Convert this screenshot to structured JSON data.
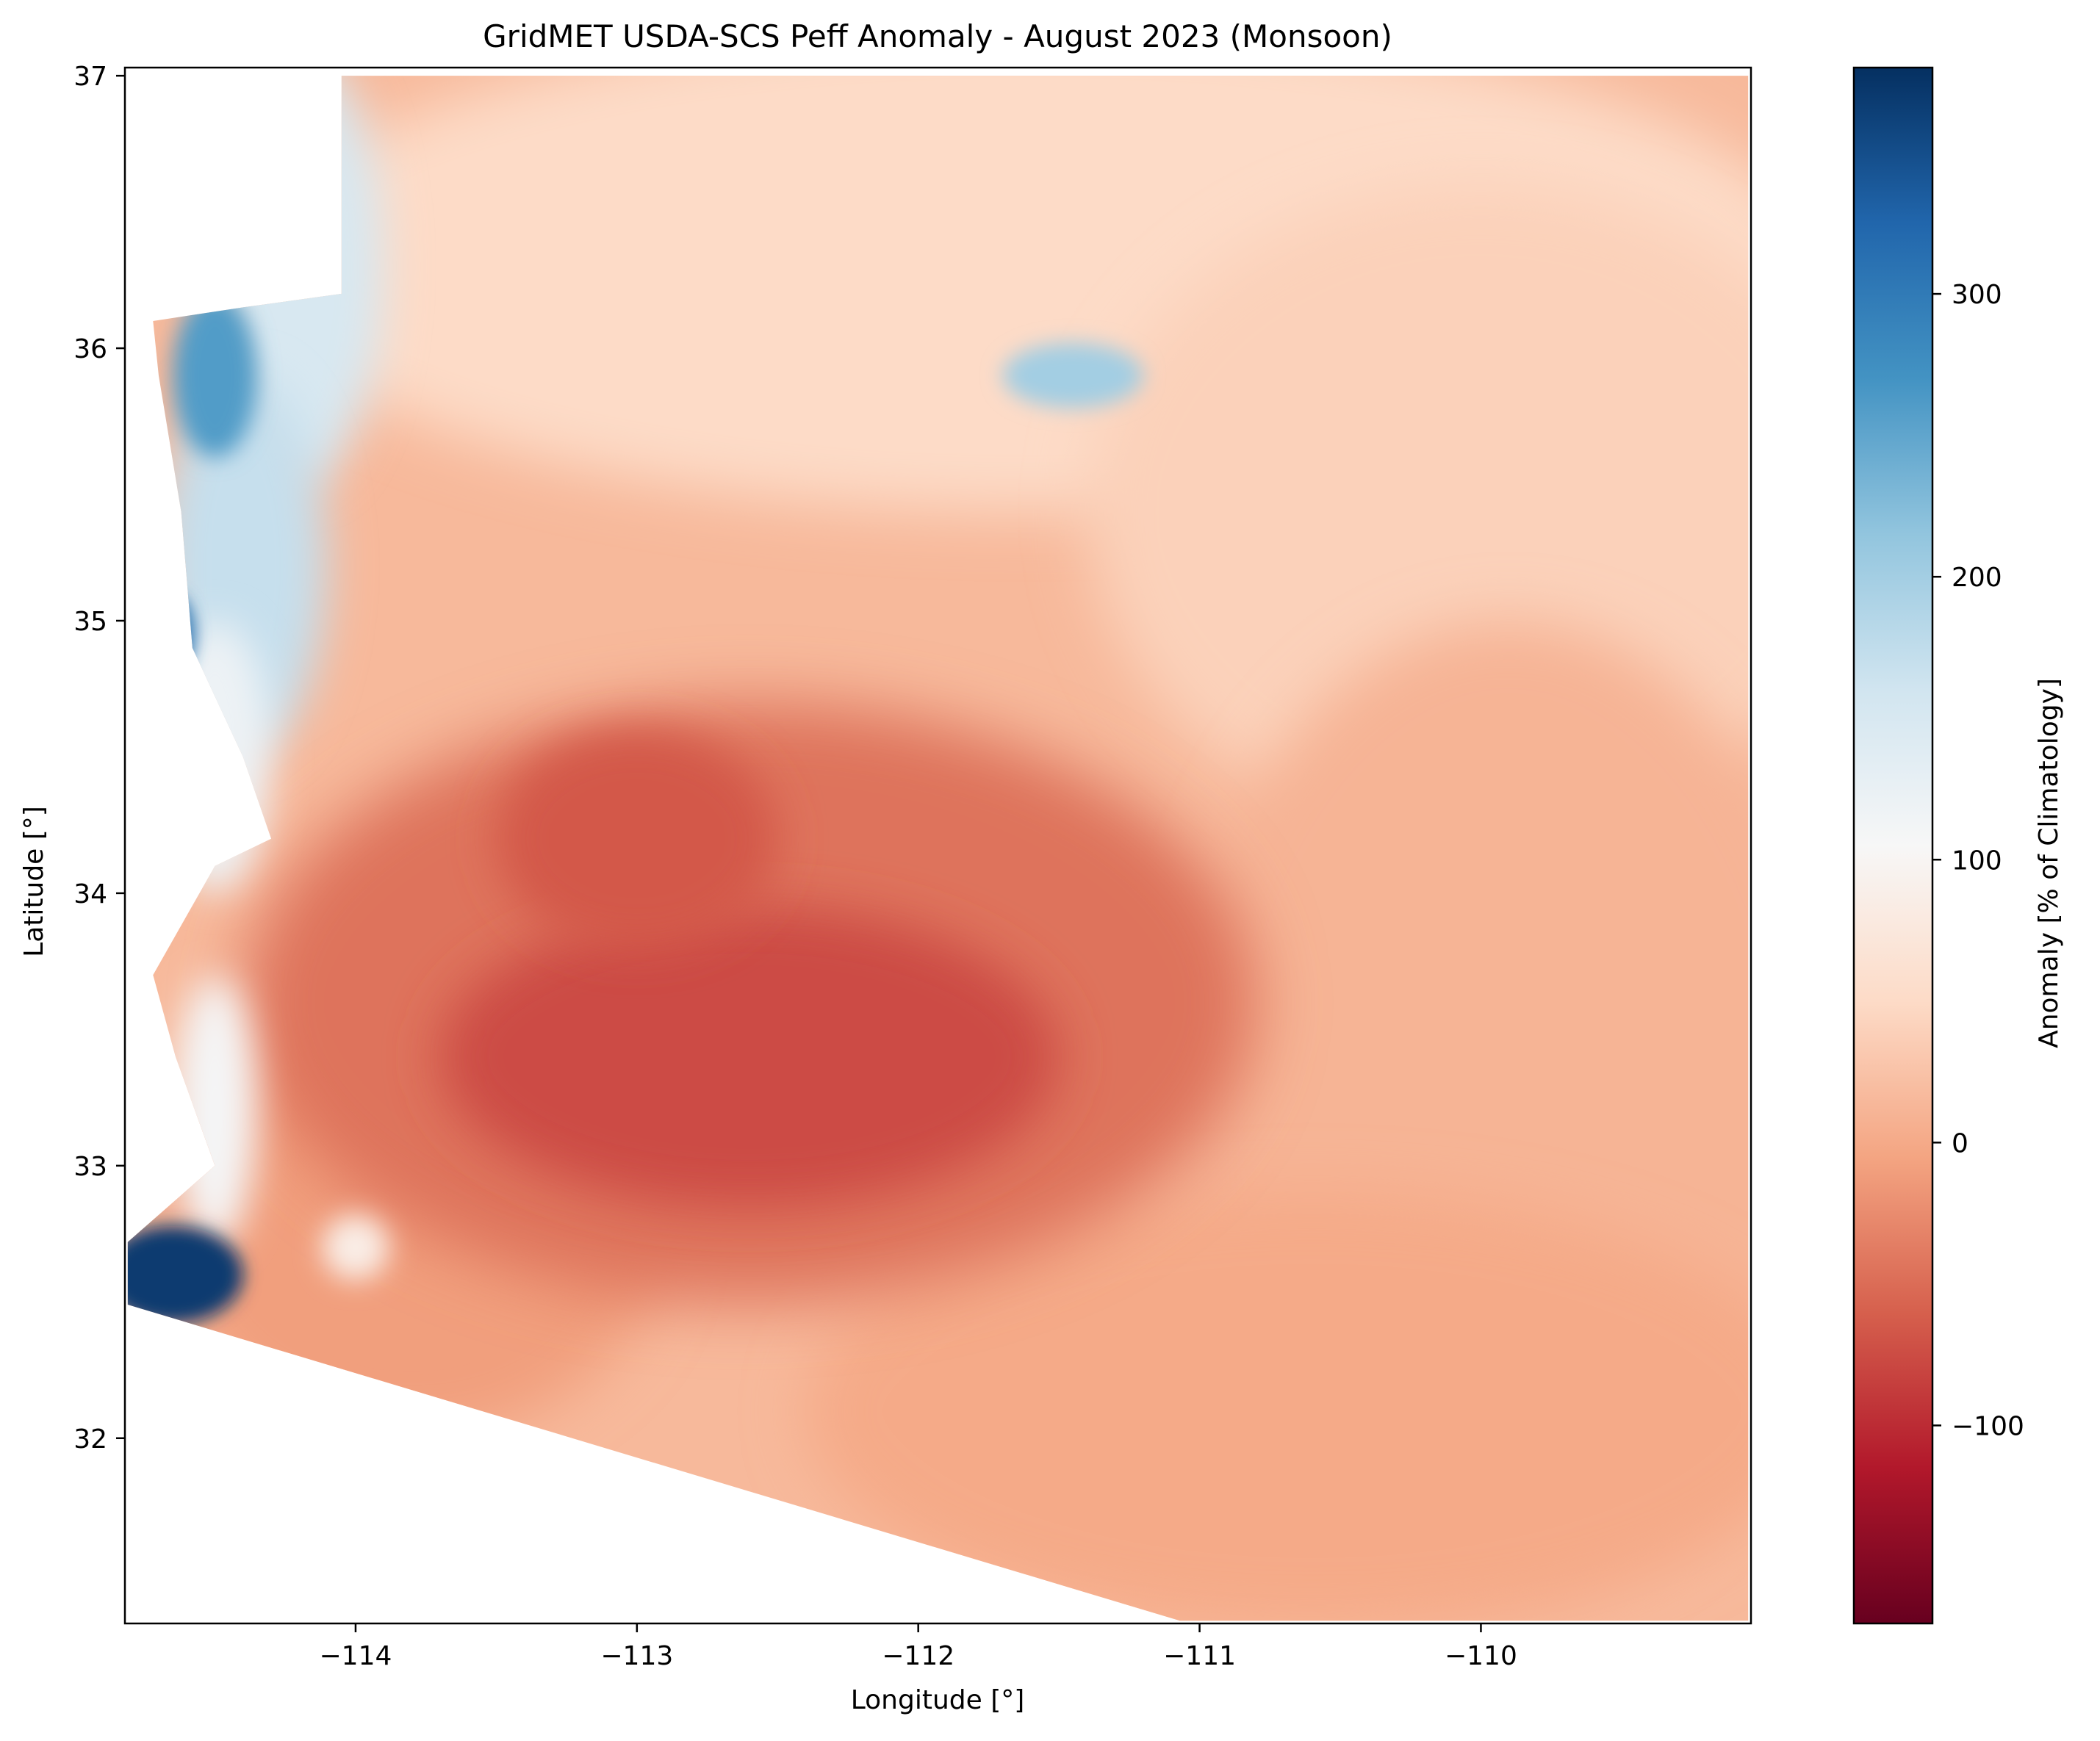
{
  "chart_data": {
    "type": "heatmap",
    "title": "GridMET USDA-SCS Peff Anomaly - August 2023 (Monsoon)",
    "xlabel": "Longitude [°]",
    "ylabel": "Latitude [°]",
    "xlim": [
      -114.82,
      -109.04
    ],
    "ylim": [
      31.32,
      37.03
    ],
    "x_ticks": [
      {
        "value": -114,
        "label": "−114"
      },
      {
        "value": -113,
        "label": "−113"
      },
      {
        "value": -112,
        "label": "−112"
      },
      {
        "value": -111,
        "label": "−111"
      },
      {
        "value": -110,
        "label": "−110"
      }
    ],
    "y_ticks": [
      {
        "value": 32,
        "label": "32"
      },
      {
        "value": 33,
        "label": "33"
      },
      {
        "value": 34,
        "label": "34"
      },
      {
        "value": 35,
        "label": "35"
      },
      {
        "value": 36,
        "label": "36"
      },
      {
        "value": 37,
        "label": "37"
      }
    ],
    "colorbar": {
      "label": "Anomaly [% of Climatology]",
      "vmin": -170,
      "vmax": 380,
      "colormap": "RdBu",
      "ticks": [
        {
          "value": -100,
          "label": "−100"
        },
        {
          "value": 0,
          "label": "0"
        },
        {
          "value": 100,
          "label": "100"
        },
        {
          "value": 200,
          "label": "200"
        },
        {
          "value": 300,
          "label": "300"
        }
      ],
      "colormap_stops": [
        "#67001f",
        "#b2182b",
        "#d6604d",
        "#f4a582",
        "#fddbc7",
        "#f7f7f7",
        "#d1e5f0",
        "#92c5de",
        "#4393c3",
        "#2166ac",
        "#053061"
      ]
    },
    "grid": false,
    "region_description_values": {
      "central_arizona_min_anomaly": -75,
      "eastern_arizona_typical_anomaly": 10,
      "northern_arizona_typical_anomaly": 50,
      "western_border_max_anomaly": 370
    }
  }
}
